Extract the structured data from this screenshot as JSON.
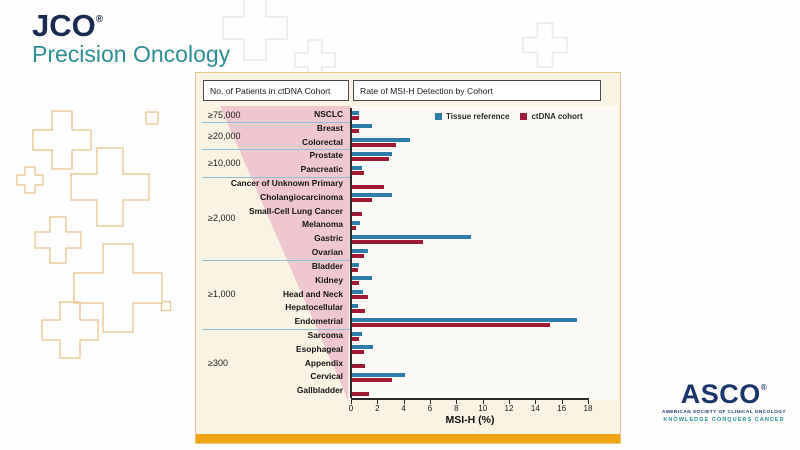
{
  "branding": {
    "jco": {
      "wordmark": "JCO",
      "registered": "®",
      "subtitle": "Precision Oncology"
    },
    "asco": {
      "wordmark": "ASCO",
      "registered": "®",
      "line1": "AMERICAN SOCIETY OF CLINICAL ONCOLOGY",
      "line2": "KNOWLEDGE CONQUERS CANCER"
    }
  },
  "figure": {
    "left_header": "No. of Patients in ctDNA Cohort",
    "right_header": "Rate of MSI-H Detection by Cohort",
    "groups": [
      {
        "label": "≥75,000",
        "first_row": 0,
        "last_row": 0
      },
      {
        "label": "≥20,000",
        "first_row": 1,
        "last_row": 2
      },
      {
        "label": "≥10,000",
        "first_row": 3,
        "last_row": 4
      },
      {
        "label": "≥2,000",
        "first_row": 5,
        "last_row": 10
      },
      {
        "label": "≥1,000",
        "first_row": 11,
        "last_row": 15
      },
      {
        "label": "≥300",
        "first_row": 16,
        "last_row": 20
      }
    ]
  },
  "chart_data": {
    "type": "bar",
    "orientation": "horizontal",
    "categories": [
      "NSCLC",
      "Breast",
      "Colorectal",
      "Prostate",
      "Pancreatic",
      "Cancer of Unknown Primary",
      "Cholangiocarcinoma",
      "Small-Cell Lung Cancer",
      "Melanoma",
      "Gastric",
      "Ovarian",
      "Bladder",
      "Kidney",
      "Head and Neck",
      "Hepatocellular",
      "Endometrial",
      "Sarcoma",
      "Esophageal",
      "Appendix",
      "Cervical",
      "Gallbladder"
    ],
    "series": [
      {
        "name": "Tissue reference",
        "color": "#2e7ca8",
        "values": [
          0.6,
          1.6,
          4.5,
          3.1,
          0.8,
          null,
          3.1,
          null,
          0.7,
          9.1,
          1.3,
          0.6,
          1.6,
          0.9,
          0.5,
          17.2,
          0.8,
          1.7,
          null,
          4.1,
          null
        ]
      },
      {
        "name": "ctDNA cohort",
        "color": "#9e1b33",
        "values": [
          0.6,
          0.6,
          3.4,
          2.9,
          1.0,
          2.5,
          1.6,
          0.8,
          0.4,
          5.5,
          1.0,
          0.5,
          0.6,
          1.3,
          1.1,
          15.1,
          0.6,
          1.0,
          1.1,
          3.1,
          1.4
        ]
      }
    ],
    "xlabel": "MSI-H (%)",
    "xlim": [
      0,
      18
    ],
    "xticks": [
      0,
      2,
      4,
      6,
      8,
      10,
      12,
      14,
      16,
      18
    ],
    "legend_position": "top-right",
    "grid": false
  },
  "colors": {
    "tissue_bar": "#2e7ca8",
    "ctdna_bar": "#9e1b33",
    "funnel_pink": "#ecc3cb",
    "panel_background": "#f9f3e4",
    "gold_accent": "#f0a317",
    "separator_blue": "#8fc0d4",
    "jco_navy": "#1b2b50",
    "brand_teal": "#2e8f92",
    "asco_navy": "#1a3668"
  }
}
